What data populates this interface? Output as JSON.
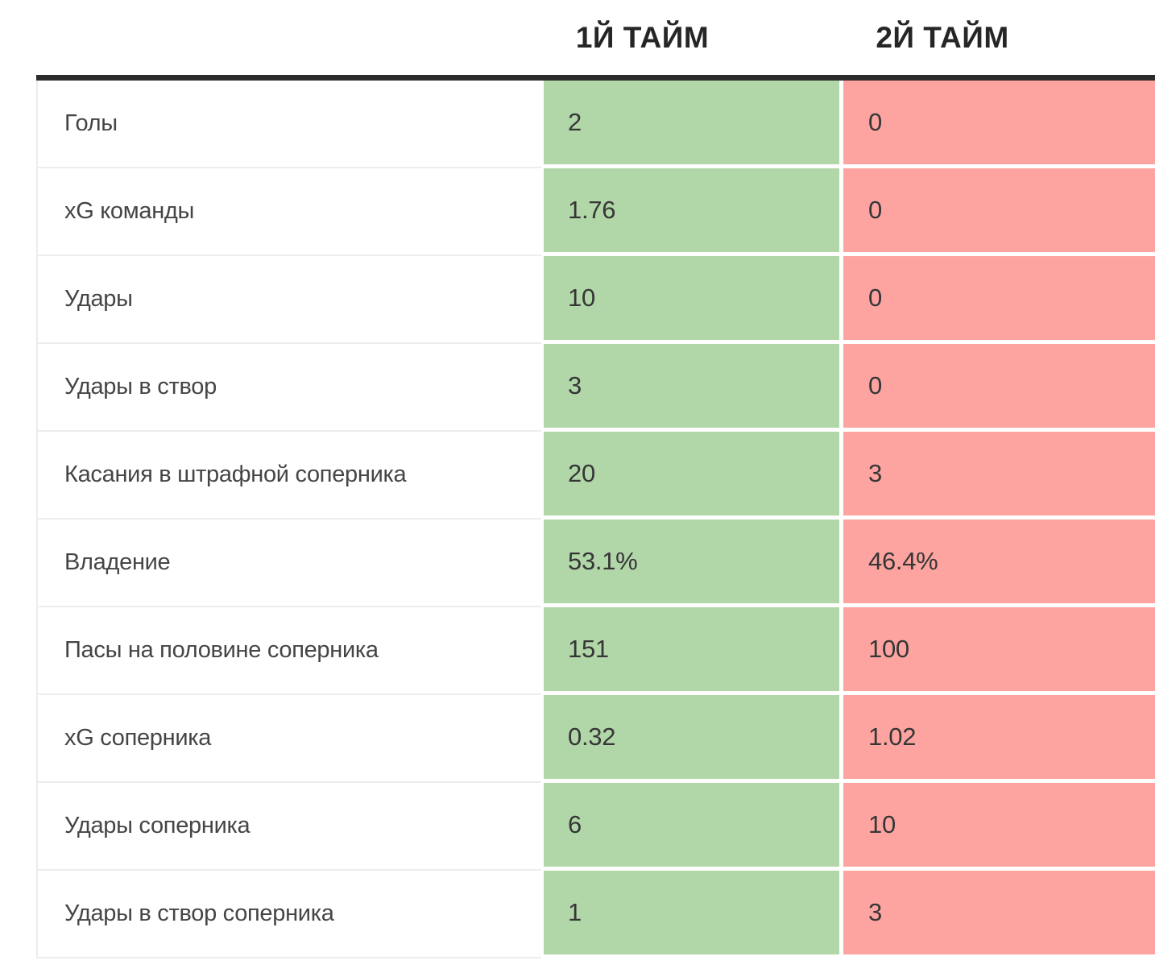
{
  "chart_data": {
    "type": "table",
    "title": "",
    "columns": [
      "1Й ТАЙМ",
      "2Й ТАЙМ"
    ],
    "rows": [
      {
        "label": "Голы",
        "first_half": "2",
        "second_half": "0"
      },
      {
        "label": "xG команды",
        "first_half": "1.76",
        "second_half": "0"
      },
      {
        "label": "Удары",
        "first_half": "10",
        "second_half": "0"
      },
      {
        "label": "Удары в створ",
        "first_half": "3",
        "second_half": "0"
      },
      {
        "label": "Касания в штрафной соперника",
        "first_half": "20",
        "second_half": "3"
      },
      {
        "label": "Владение",
        "first_half": "53.1%",
        "second_half": "46.4%"
      },
      {
        "label": "Пасы на половине соперника",
        "first_half": "151",
        "second_half": "100"
      },
      {
        "label": "xG соперника",
        "first_half": "0.32",
        "second_half": "1.02"
      },
      {
        "label": "Удары соперника",
        "first_half": "6",
        "second_half": "10"
      },
      {
        "label": "Удары в створ соперника",
        "first_half": "1",
        "second_half": "3"
      }
    ],
    "series": [
      {
        "name": "1Й ТАЙМ",
        "values": [
          2,
          1.76,
          10,
          3,
          20,
          53.1,
          151,
          0.32,
          6,
          1
        ]
      },
      {
        "name": "2Й ТАЙМ",
        "values": [
          0,
          0,
          0,
          0,
          3,
          46.4,
          100,
          1.02,
          10,
          3
        ]
      }
    ],
    "layout_hints": {
      "first_half_column_bg": "green",
      "second_half_column_bg": "pink",
      "header_divider": "thick black line"
    }
  },
  "header": {
    "first": "1Й ТАЙМ",
    "second": "2Й ТАЙМ"
  },
  "colors": {
    "first_half_bg": "#b1d6a8",
    "second_half_bg": "#fda4a1",
    "divider": "#2b2b2b",
    "row_border": "#ededed",
    "label_text": "#454545",
    "value_text": "#363636",
    "header_text": "#262626"
  }
}
